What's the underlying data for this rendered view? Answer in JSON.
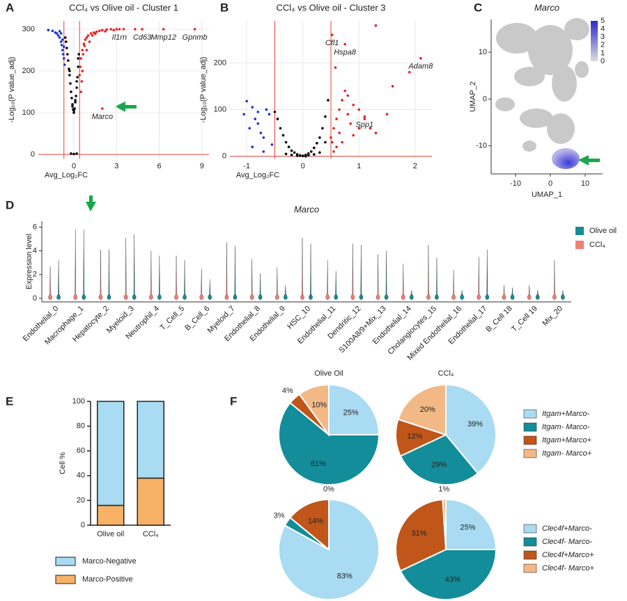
{
  "chart_data": [
    {
      "type": "volcano",
      "panel": "A",
      "title": "CCl₄ vs Olive oil - Cluster 1",
      "xlabel": "Avg_Log₂FC",
      "ylabel": "-Log₁₀(P value_adj)",
      "xlim": [
        -2.5,
        9.5
      ],
      "ylim": [
        -10,
        320
      ],
      "xticks": [
        0,
        3,
        6,
        9
      ],
      "yticks": [
        0,
        100,
        200,
        300
      ],
      "grid": true,
      "vlines": [
        -0.7,
        0.4
      ],
      "hlines": [
        0
      ],
      "line_color": "#e8403a",
      "series": [
        {
          "color": "#000000",
          "x": [
            -0.6,
            -0.5,
            -0.45,
            -0.4,
            -0.35,
            -0.3,
            -0.25,
            -0.2,
            -0.15,
            -0.1,
            -0.05,
            0,
            0.05,
            0.1,
            0.15,
            0.2,
            0.25,
            0.3,
            0.35,
            -0.55,
            -0.3,
            0.2,
            0.1,
            -0.1,
            0,
            0.3,
            -0.2,
            0,
            0.2
          ],
          "values": [
            280,
            255,
            240,
            225,
            205,
            190,
            170,
            150,
            135,
            120,
            108,
            100,
            110,
            125,
            140,
            160,
            185,
            210,
            240,
            270,
            200,
            175,
            130,
            115,
            105,
            230,
            2,
            1,
            2
          ]
        },
        {
          "color": "#1f2fd6",
          "x": [
            -1.8,
            -1.5,
            -1.3,
            -1.2,
            -1.1,
            -1.0,
            -0.9,
            -0.85,
            -0.8,
            -0.75,
            -0.7,
            -0.65,
            -0.9,
            -1.0,
            -0.8,
            -0.7
          ],
          "values": [
            298,
            296,
            292,
            290,
            285,
            280,
            270,
            262,
            250,
            240,
            230,
            215,
            290,
            295,
            275,
            258
          ]
        },
        {
          "color": "#e8201a",
          "x": [
            0.4,
            0.45,
            0.5,
            0.6,
            0.7,
            0.8,
            0.9,
            1.0,
            1.2,
            1.4,
            1.6,
            1.8,
            2.0,
            2.3,
            2.6,
            3.0,
            3.5,
            0.55,
            0.65,
            0.75,
            1.1,
            1.5,
            2.2,
            0.5,
            0.6,
            0.9,
            1.3,
            2.8,
            3.2,
            4.3,
            4.8,
            6.3,
            8.5,
            2.0
          ],
          "values": [
            190,
            210,
            230,
            250,
            265,
            275,
            280,
            285,
            290,
            292,
            294,
            296,
            298,
            299,
            300,
            300,
            300,
            175,
            240,
            260,
            270,
            289,
            295,
            150,
            200,
            250,
            285,
            298,
            300,
            300,
            300,
            300,
            300,
            110
          ]
        }
      ],
      "annotations": [
        {
          "text": "Cd63",
          "x": 4.8,
          "y": 300
        },
        {
          "text": "Il1rn",
          "x": 3.2,
          "y": 300
        },
        {
          "text": "Mmp12",
          "x": 6.3,
          "y": 300
        },
        {
          "text": "Gpnmb",
          "x": 8.5,
          "y": 300
        },
        {
          "text": "Marco",
          "x": 2.0,
          "y": 110
        }
      ]
    },
    {
      "type": "volcano",
      "panel": "B",
      "title": "CCl₄ vs Olive oil - Cluster 3",
      "xlabel": "Avg_Log₂FC",
      "ylabel": "-Log₁₀(P value_adj)",
      "xlim": [
        -1.3,
        2.3
      ],
      "ylim": [
        -5,
        290
      ],
      "xticks": [
        -1,
        0,
        1,
        2
      ],
      "yticks": [
        0,
        100,
        200
      ],
      "grid": true,
      "vlines": [
        -0.5,
        0.5
      ],
      "hlines": [
        0
      ],
      "line_color": "#e8403a",
      "series": [
        {
          "color": "#000000",
          "x": [
            -0.5,
            -0.45,
            -0.4,
            -0.35,
            -0.3,
            -0.25,
            -0.2,
            -0.15,
            -0.1,
            -0.05,
            0,
            0.05,
            0.1,
            0.15,
            0.2,
            0.25,
            0.3,
            0.35,
            0.4,
            0.45,
            -0.3,
            -0.1,
            0.1,
            0.3,
            -0.2,
            0.2,
            0,
            0.05,
            -0.05,
            0.4
          ],
          "values": [
            95,
            80,
            60,
            45,
            30,
            20,
            12,
            8,
            4,
            2,
            1,
            3,
            6,
            10,
            18,
            28,
            40,
            60,
            85,
            120,
            5,
            1,
            2,
            8,
            3,
            4,
            0.5,
            0,
            1,
            30
          ]
        },
        {
          "color": "#1f2fd6",
          "x": [
            -1.0,
            -0.95,
            -0.9,
            -0.85,
            -0.8,
            -0.75,
            -0.7,
            -0.65,
            -0.6,
            -0.55,
            -0.9,
            -0.8,
            -1.05,
            -0.7
          ],
          "values": [
            118,
            60,
            105,
            80,
            95,
            50,
            40,
            100,
            90,
            25,
            20,
            70,
            90,
            10
          ]
        },
        {
          "color": "#e8201a",
          "x": [
            0.5,
            0.55,
            0.6,
            0.65,
            0.7,
            0.75,
            0.8,
            0.85,
            0.9,
            1.0,
            1.1,
            1.2,
            1.3,
            1.5,
            0.6,
            0.7,
            0.9,
            1.1,
            0.55,
            0.65,
            0.8,
            1.0,
            0.52,
            0.58,
            1.6,
            1.9,
            2.1,
            0.52,
            0.75,
            1.3
          ],
          "values": [
            40,
            60,
            80,
            100,
            120,
            140,
            90,
            70,
            110,
            100,
            80,
            60,
            50,
            90,
            20,
            30,
            45,
            85,
            10,
            50,
            130,
            60,
            260,
            190,
            150,
            180,
            210,
            30,
            240,
            280
          ]
        }
      ],
      "annotations": [
        {
          "text": "Cfl1",
          "x": 0.52,
          "y": 260
        },
        {
          "text": "Hspa8",
          "x": 0.75,
          "y": 240
        },
        {
          "text": "Adam8",
          "x": 2.1,
          "y": 210
        },
        {
          "text": "Spp1",
          "x": 1.1,
          "y": 85
        }
      ]
    },
    {
      "type": "umap",
      "panel": "C",
      "title": "Marco",
      "xlabel": "UMAP_1",
      "ylabel": "UMAP_2",
      "xlim": [
        -17,
        15
      ],
      "ylim": [
        -16,
        17
      ],
      "xticks": [
        -10,
        0,
        10
      ],
      "yticks": [
        -10,
        0,
        10
      ],
      "colorbar": {
        "lim": [
          0,
          5
        ],
        "ticks": [
          0,
          1,
          2,
          3,
          4,
          5
        ],
        "colors": [
          "#dcdcdc",
          "#2a2ad0"
        ]
      }
    },
    {
      "type": "violin",
      "panel": "D",
      "title": "Marco",
      "ylabel": "Expression level",
      "ylim": [
        -0.3,
        6.5
      ],
      "yticks": [
        0,
        2,
        4,
        6
      ],
      "categories": [
        "Endothelial_0",
        "Macrophage_1",
        "Hepatocyte_2",
        "Myeloid_3",
        "Neutrophil_4",
        "T_Cell_5",
        "B_Cell_6",
        "Myeloid_7",
        "Endothelial_8",
        "Endothelial_9",
        "HSC_10",
        "Endothelial_11",
        "Dendritic_12",
        "S100A8/9+Mix_13",
        "Endothelial_14",
        "Cholangiocytes_15",
        "Mixed Endothelial_16",
        "Endothelial_17",
        "B_Cell 18",
        "T_Cell 19",
        "Mix_20"
      ],
      "series": [
        {
          "name": "Olive oil",
          "color": "#178b94",
          "values": [
            3.2,
            5.8,
            4.1,
            5.4,
            3.6,
            3.2,
            1.6,
            4.4,
            2.1,
            1.1,
            4.6,
            2.3,
            4.5,
            4.0,
            0.7,
            3.4,
            0.7,
            4.1,
            0.9,
            0.7,
            0.7
          ]
        },
        {
          "name": "CCl₄",
          "color": "#f07f75",
          "values": [
            2.7,
            5.8,
            4.1,
            5.1,
            4.0,
            3.6,
            2.5,
            4.7,
            3.3,
            2.6,
            5.1,
            3.2,
            4.6,
            3.7,
            2.9,
            4.5,
            2.4,
            3.5,
            1.1,
            1.1,
            3.2
          ]
        }
      ]
    },
    {
      "type": "stacked_bar",
      "panel": "E",
      "ylabel": "Cell %",
      "ylim": [
        0,
        100
      ],
      "yticks": [
        0,
        20,
        40,
        60,
        80,
        100
      ],
      "categories": [
        "Olive oil",
        "CCl₄"
      ],
      "series": [
        {
          "name": "Marco-Negative",
          "color": "#a9dbf2",
          "values": [
            84,
            62
          ]
        },
        {
          "name": "Marco-Positive",
          "color": "#f7b267",
          "values": [
            16,
            38
          ]
        }
      ]
    },
    {
      "type": "pie",
      "panel": "F",
      "categories": [
        "Itgam+Marco-",
        "Itgam- Marco-",
        "Itgam+Marco+",
        "Itgam- Marco+"
      ],
      "colors": [
        "#a9dbf2",
        "#138d9a",
        "#c0561a",
        "#f2b986"
      ],
      "pies": [
        {
          "title": "Olive Oil",
          "values": [
            25,
            61,
            4,
            10
          ],
          "value_labels": [
            "25%",
            "61%",
            "4%",
            "10%"
          ]
        },
        {
          "title": "CCl₄",
          "values": [
            39,
            29,
            12,
            20
          ],
          "value_labels": [
            "39%",
            "29%",
            "12%",
            "20%"
          ]
        }
      ]
    },
    {
      "type": "pie",
      "categories": [
        "Clec4f+Marco-",
        "Clec4f- Marco-",
        "Clec4f+Marco+",
        "Clec4f- Marco+"
      ],
      "colors": [
        "#a9dbf2",
        "#138d9a",
        "#c0561a",
        "#f2b986"
      ],
      "pies": [
        {
          "values": [
            83,
            3,
            14,
            0
          ],
          "value_labels": [
            "83%",
            "3%",
            "14%",
            "0%"
          ]
        },
        {
          "values": [
            25,
            43,
            31,
            1
          ],
          "value_labels": [
            "25%",
            "43%",
            "31%",
            "1%"
          ]
        }
      ]
    }
  ]
}
